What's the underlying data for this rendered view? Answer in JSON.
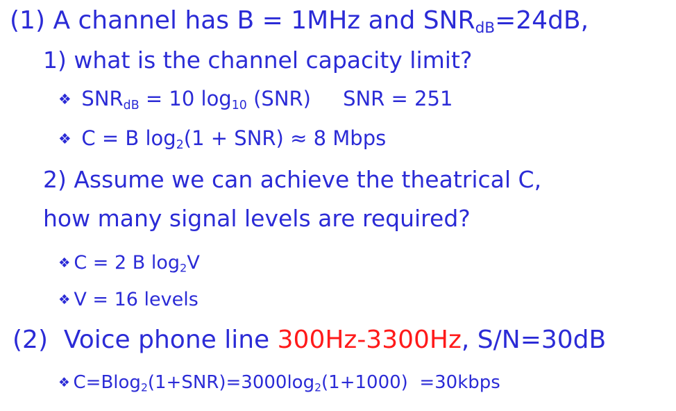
{
  "q1": {
    "head_a": "(1)  A channel has B = 1MHz and SNR",
    "head_sub": "dB",
    "head_b": "=24dB,",
    "part1": "1)  what is the channel capacity limit?",
    "bullet_a_a": "SNR",
    "bullet_a_sub1": "dB",
    "bullet_a_b": " = 10 log",
    "bullet_a_sub2": "10",
    "bullet_a_c": " (SNR)     SNR = 251",
    "bullet_b_a": "C = B log",
    "bullet_b_sub": "2",
    "bullet_b_b": "(1 + SNR) ≈ 8 Mbps",
    "part2_line1": "2)  Assume we can achieve the theatrical C,",
    "part2_line2": "how many signal levels are required?",
    "bullet_c_a": "C = 2 B log",
    "bullet_c_sub": "2",
    "bullet_c_b": "V",
    "bullet_d": "V = 16 levels"
  },
  "q2": {
    "head_a": "(2)  Voice phone line ",
    "head_red": "300Hz-3300Hz",
    "head_b": ", S/N=30dB",
    "bullet_a": "C=Blog",
    "bullet_sub1": "2",
    "bullet_b": "(1+SNR)=3000log",
    "bullet_sub2": "2",
    "bullet_c": "(1+1000)  =30kbps"
  },
  "bullet_glyph": "❖",
  "colors": {
    "text": "#2b2bd6",
    "highlight": "#ff1a1a"
  }
}
